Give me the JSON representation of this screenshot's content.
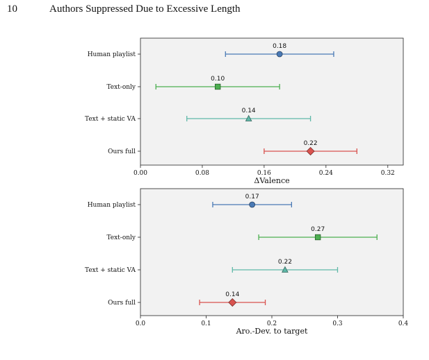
{
  "header": {
    "page_number": "10",
    "running_head": "Authors Suppressed Due to Excessive Length"
  },
  "colors": {
    "human": "#4a7ab5",
    "text_only": "#4caf50",
    "text_static": "#5fb8a8",
    "ours": "#d9534f",
    "panel_bg": "#f2f2f2"
  },
  "chart_data": [
    {
      "type": "scatter",
      "variant": "dot-with-error-bars",
      "orientation": "horizontal",
      "categories": [
        "Human playlist",
        "Text-only",
        "Text + static VA",
        "Ours full"
      ],
      "markers": [
        "circle",
        "square",
        "triangle",
        "diamond"
      ],
      "values": [
        0.18,
        0.1,
        0.14,
        0.22
      ],
      "value_labels": [
        "0.18",
        "0.10",
        "0.14",
        "0.22"
      ],
      "ci_low": [
        0.11,
        0.02,
        0.06,
        0.16
      ],
      "ci_high": [
        0.25,
        0.18,
        0.22,
        0.28
      ],
      "xlabel": "ΔValence",
      "xlim": [
        0,
        0.34
      ],
      "xticks": [
        0.0,
        0.08,
        0.16,
        0.24,
        0.32
      ],
      "xtick_labels": [
        "0.00",
        "0.08",
        "0.16",
        "0.24",
        "0.32"
      ],
      "grid": false
    },
    {
      "type": "scatter",
      "variant": "dot-with-error-bars",
      "orientation": "horizontal",
      "categories": [
        "Human playlist",
        "Text-only",
        "Text + static VA",
        "Ours full"
      ],
      "markers": [
        "circle",
        "square",
        "triangle",
        "diamond"
      ],
      "values": [
        0.17,
        0.27,
        0.22,
        0.14
      ],
      "value_labels": [
        "0.17",
        "0.27",
        "0.22",
        "0.14"
      ],
      "ci_low": [
        0.11,
        0.18,
        0.14,
        0.09
      ],
      "ci_high": [
        0.23,
        0.36,
        0.3,
        0.19
      ],
      "xlabel": "Aro.-Dev. to target",
      "xlim": [
        0,
        0.4
      ],
      "xticks": [
        0.0,
        0.1,
        0.2,
        0.3,
        0.4
      ],
      "xtick_labels": [
        "0.0",
        "0.1",
        "0.2",
        "0.3",
        "0.4"
      ],
      "grid": false
    }
  ]
}
